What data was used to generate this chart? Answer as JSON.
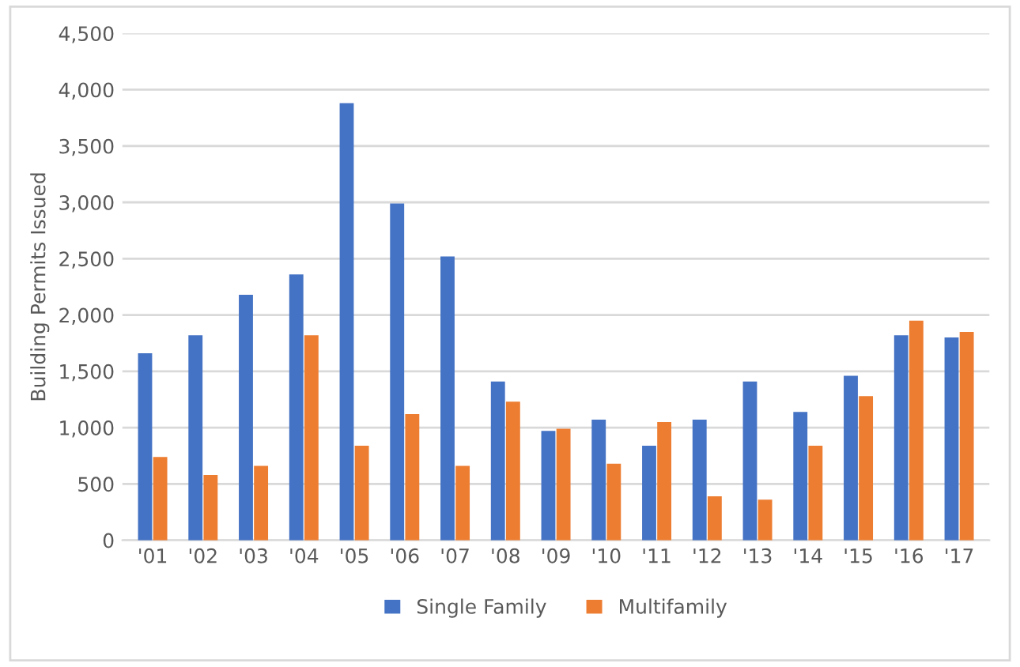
{
  "chart_data": {
    "type": "bar",
    "ylabel": "Building Permits Issued",
    "categories": [
      "'01",
      "'02",
      "'03",
      "'04",
      "'05",
      "'06",
      "'07",
      "'08",
      "'09",
      "'10",
      "'11",
      "'12",
      "'13",
      "'14",
      "'15",
      "'16",
      "'17"
    ],
    "series": [
      {
        "name": "Single Family",
        "color": "#4472c4",
        "values": [
          1660,
          1820,
          2180,
          2360,
          3880,
          2990,
          2520,
          1410,
          970,
          1070,
          840,
          1070,
          1410,
          1140,
          1460,
          1820,
          1800
        ]
      },
      {
        "name": "Multifamily",
        "color": "#ed7d31",
        "values": [
          740,
          580,
          660,
          1820,
          840,
          1120,
          660,
          1230,
          990,
          680,
          1050,
          390,
          360,
          840,
          1280,
          1950,
          1850
        ]
      }
    ],
    "ylim": [
      0,
      4500
    ],
    "yticks": [
      {
        "value": 0,
        "label": "0"
      },
      {
        "value": 500,
        "label": "500"
      },
      {
        "value": 1000,
        "label": "1,000"
      },
      {
        "value": 1500,
        "label": "1,500"
      },
      {
        "value": 2000,
        "label": "2,000"
      },
      {
        "value": 2500,
        "label": "2,500"
      },
      {
        "value": 3000,
        "label": "3,000"
      },
      {
        "value": 3500,
        "label": "3,500"
      },
      {
        "value": 4000,
        "label": "4,000"
      },
      {
        "value": 4500,
        "label": "4,500"
      }
    ],
    "grid": "y",
    "legend": "bottom"
  }
}
